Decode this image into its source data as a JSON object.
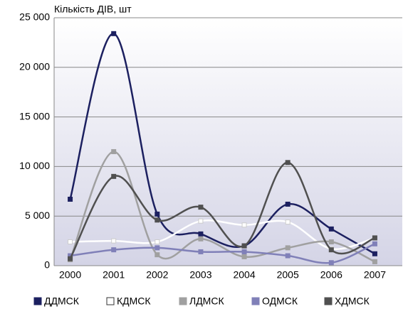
{
  "chart_data": {
    "type": "line",
    "y_axis_label": "Кількість ДІВ, шт",
    "categories": [
      "2000",
      "2001",
      "2002",
      "2003",
      "2004",
      "2005",
      "2006",
      "2007"
    ],
    "series": [
      {
        "name": "ДДМСК",
        "color": "#1c2060",
        "values": [
          6700,
          23400,
          5200,
          3200,
          2000,
          6200,
          3700,
          1200
        ]
      },
      {
        "name": "КДМСК",
        "color": "#ffffff",
        "values": [
          2400,
          2500,
          2400,
          4500,
          4100,
          4400,
          1700,
          2800
        ]
      },
      {
        "name": "ЛДМСК",
        "color": "#a0a0a0",
        "values": [
          600,
          11500,
          1100,
          2700,
          900,
          1800,
          2400,
          400
        ]
      },
      {
        "name": "ОДМСК",
        "color": "#8080b8",
        "values": [
          1000,
          1600,
          1800,
          1400,
          1400,
          1000,
          300,
          2200
        ]
      },
      {
        "name": "ХДМСК",
        "color": "#505050",
        "values": [
          700,
          9000,
          4600,
          5900,
          2000,
          10400,
          1600,
          2800
        ]
      }
    ],
    "ylim": [
      0,
      25000
    ],
    "yticks": [
      0,
      {
        "value": 5000,
        "label": "5 000"
      },
      {
        "value": 10000,
        "label": "10 000"
      },
      {
        "value": 15000,
        "label": "15 000"
      },
      {
        "value": 20000,
        "label": "20 000"
      },
      {
        "value": 25000,
        "label": "25 000"
      }
    ],
    "grid": true,
    "smooth": true,
    "legend": "bottom"
  }
}
